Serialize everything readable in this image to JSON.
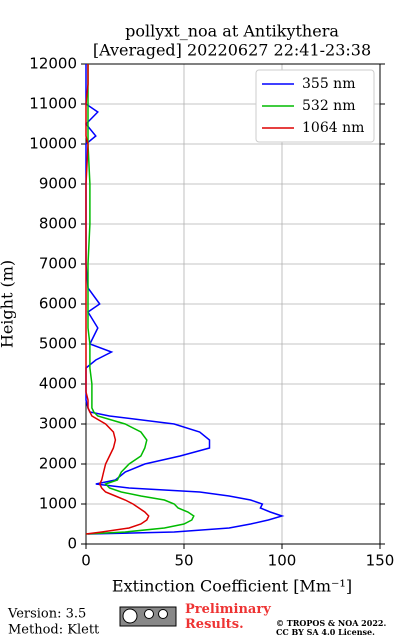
{
  "chart_data": {
    "type": "profile",
    "title": "pollyxt_noa at Antikythera",
    "subtitle": "[Averaged] 20220627 22:41-23:38",
    "xlabel": "Extinction Coefficient [Mm⁻¹]",
    "ylabel": "Height (m)",
    "y": [
      250,
      300,
      400,
      500,
      600,
      700,
      800,
      900,
      1000,
      1100,
      1200,
      1300,
      1400,
      1500,
      1600,
      1800,
      2000,
      2200,
      2400,
      2600,
      2800,
      3000,
      3200,
      3300,
      3400,
      3600,
      3800,
      4000,
      4400,
      4600,
      4800,
      5000,
      5400,
      5800,
      6000,
      6400,
      7000,
      8000,
      9000,
      10000,
      10200,
      10500,
      10800,
      11000,
      11500,
      12000
    ],
    "series": [
      {
        "name": "355 nm",
        "color": "#0000ff",
        "values": [
          1,
          45,
          73,
          84,
          93,
          100,
          94,
          89,
          90,
          84,
          73,
          58,
          22,
          5,
          15,
          20,
          30,
          48,
          63,
          63,
          58,
          45,
          12,
          2,
          1,
          0,
          0,
          0,
          0,
          5,
          13,
          2,
          6,
          1,
          7,
          1,
          0,
          0,
          0,
          0,
          5,
          0,
          6,
          0,
          0,
          0
        ]
      },
      {
        "name": "532 nm",
        "color": "#00bb00",
        "values": [
          0,
          20,
          40,
          50,
          54,
          55,
          52,
          47,
          45,
          40,
          28,
          18,
          12,
          10,
          16,
          18,
          22,
          28,
          30,
          31,
          28,
          20,
          6,
          4,
          3,
          3,
          3,
          3,
          2,
          2,
          2,
          2,
          1,
          1,
          1,
          1,
          1,
          2,
          2,
          1,
          1,
          1,
          1,
          1,
          1,
          1
        ]
      },
      {
        "name": "1064 nm",
        "color": "#dd0000",
        "values": [
          0,
          8,
          22,
          28,
          31,
          32,
          30,
          27,
          24,
          20,
          15,
          10,
          8,
          7,
          8,
          9,
          10,
          12,
          14,
          15,
          14,
          10,
          3,
          2,
          1,
          1,
          0,
          0,
          0,
          0,
          0,
          0,
          0,
          0,
          0,
          0,
          0,
          0,
          0,
          1,
          0,
          0,
          0,
          0,
          1,
          1
        ]
      }
    ],
    "xlim": [
      0,
      150
    ],
    "xticks": [
      0,
      50,
      100,
      150
    ],
    "ylim": [
      0,
      12000
    ],
    "yticks": [
      0,
      1000,
      2000,
      3000,
      4000,
      5000,
      6000,
      7000,
      8000,
      9000,
      10000,
      11000,
      12000
    ],
    "grid": true,
    "legend": "upper right"
  },
  "footer": {
    "version": "Version: 3.5",
    "method": "Method: Klett",
    "notice": "Preliminary Results.",
    "copyright": "© TROPOS & NOA 2022.",
    "license": "CC BY SA 4.0 License."
  }
}
